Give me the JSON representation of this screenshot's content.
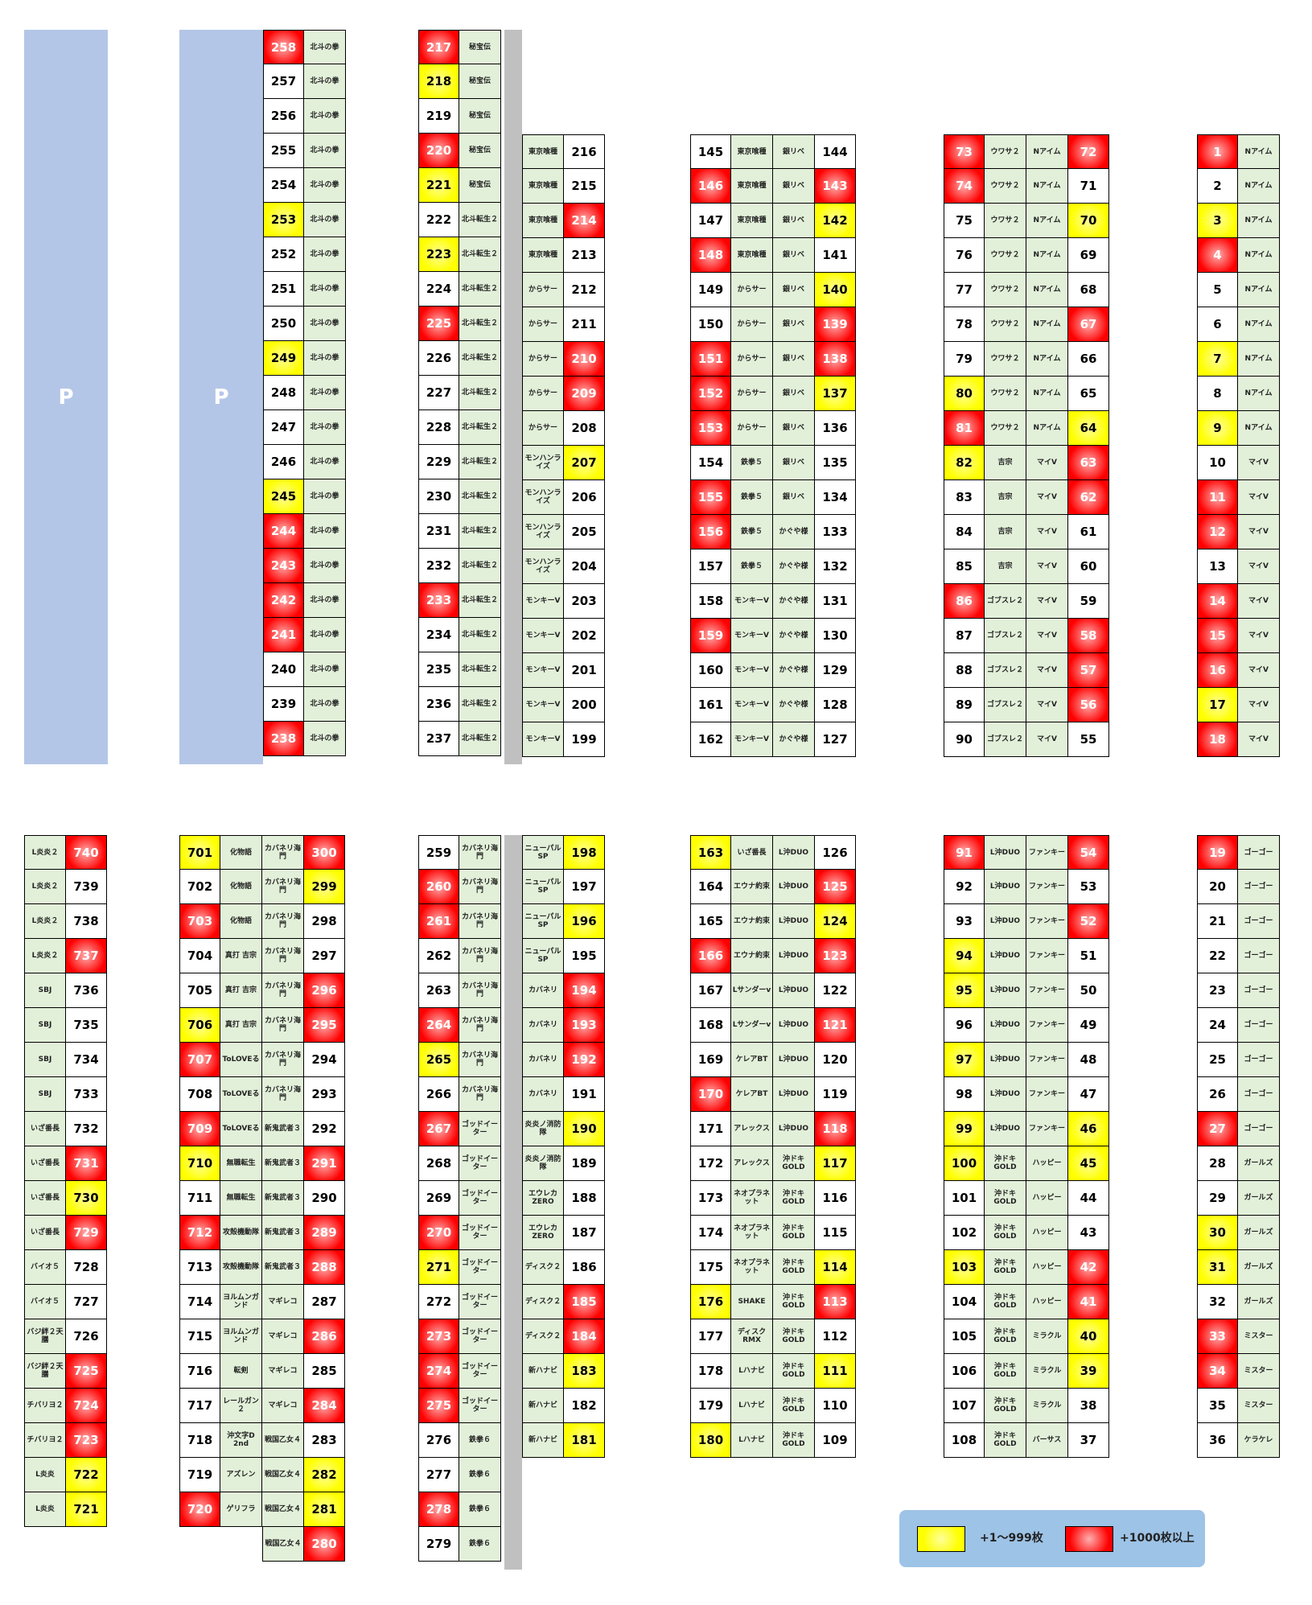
{
  "parking_label": "P",
  "legend": {
    "yellow_label": "+1～999枚",
    "red_label": "+1000枚以上",
    "yellow_color": "#ffff00",
    "red_color": "#ff0000"
  },
  "groups": [
    {
      "id": "g1",
      "cols": [
        "n",
        "m"
      ],
      "rows": [
        [
          "258r",
          "北斗の拳"
        ],
        [
          "257",
          "北斗の拳"
        ],
        [
          "256",
          "北斗の拳"
        ],
        [
          "255",
          "北斗の拳"
        ],
        [
          "254",
          "北斗の拳"
        ],
        [
          "253y",
          "北斗の拳"
        ],
        [
          "252",
          "北斗の拳"
        ],
        [
          "251",
          "北斗の拳"
        ],
        [
          "250",
          "北斗の拳"
        ],
        [
          "249y",
          "北斗の拳"
        ],
        [
          "248",
          "北斗の拳"
        ],
        [
          "247",
          "北斗の拳"
        ],
        [
          "246",
          "北斗の拳"
        ],
        [
          "245y",
          "北斗の拳"
        ],
        [
          "244r",
          "北斗の拳"
        ],
        [
          "243r",
          "北斗の拳"
        ],
        [
          "242r",
          "北斗の拳"
        ],
        [
          "241r",
          "北斗の拳"
        ],
        [
          "240",
          "北斗の拳"
        ],
        [
          "239",
          "北斗の拳"
        ],
        [
          "238r",
          "北斗の拳"
        ]
      ]
    },
    {
      "id": "g2",
      "cols": [
        "n",
        "m"
      ],
      "rows": [
        [
          "217r",
          "秘宝伝"
        ],
        [
          "218y",
          "秘宝伝"
        ],
        [
          "219",
          "秘宝伝"
        ],
        [
          "220r",
          "秘宝伝"
        ],
        [
          "221y",
          "秘宝伝"
        ],
        [
          "222",
          "北斗転生２"
        ],
        [
          "223y",
          "北斗転生２"
        ],
        [
          "224",
          "北斗転生２"
        ],
        [
          "225r",
          "北斗転生２"
        ],
        [
          "226",
          "北斗転生２"
        ],
        [
          "227",
          "北斗転生２"
        ],
        [
          "228",
          "北斗転生２"
        ],
        [
          "229",
          "北斗転生２"
        ],
        [
          "230",
          "北斗転生２"
        ],
        [
          "231",
          "北斗転生２"
        ],
        [
          "232",
          "北斗転生２"
        ],
        [
          "233r",
          "北斗転生２"
        ],
        [
          "234",
          "北斗転生２"
        ],
        [
          "235",
          "北斗転生２"
        ],
        [
          "236",
          "北斗転生２"
        ],
        [
          "237",
          "北斗転生２"
        ]
      ]
    },
    {
      "id": "g3",
      "cols": [
        "m",
        "n"
      ],
      "rows": [
        [
          "東京喰種",
          "216"
        ],
        [
          "東京喰種",
          "215"
        ],
        [
          "東京喰種",
          "214r"
        ],
        [
          "東京喰種",
          "213"
        ],
        [
          "からサー",
          "212"
        ],
        [
          "からサー",
          "211"
        ],
        [
          "からサー",
          "210r"
        ],
        [
          "からサー",
          "209r"
        ],
        [
          "からサー",
          "208"
        ],
        [
          "モンハンライズ",
          "207y"
        ],
        [
          "モンハンライズ",
          "206"
        ],
        [
          "モンハンライズ",
          "205"
        ],
        [
          "モンハンライズ",
          "204"
        ],
        [
          "モンキーV",
          "203"
        ],
        [
          "モンキーV",
          "202"
        ],
        [
          "モンキーV",
          "201"
        ],
        [
          "モンキーV",
          "200"
        ],
        [
          "モンキーV",
          "199"
        ]
      ]
    },
    {
      "id": "g4",
      "cols": [
        "n",
        "m",
        "m",
        "n"
      ],
      "rows": [
        [
          "145",
          "東京喰種",
          "銀リベ",
          "144"
        ],
        [
          "146r",
          "東京喰種",
          "銀リベ",
          "143r"
        ],
        [
          "147",
          "東京喰種",
          "銀リベ",
          "142y"
        ],
        [
          "148r",
          "東京喰種",
          "銀リベ",
          "141"
        ],
        [
          "149",
          "からサー",
          "銀リベ",
          "140y"
        ],
        [
          "150",
          "からサー",
          "銀リベ",
          "139r"
        ],
        [
          "151r",
          "からサー",
          "銀リベ",
          "138r"
        ],
        [
          "152r",
          "からサー",
          "銀リベ",
          "137y"
        ],
        [
          "153r",
          "からサー",
          "銀リベ",
          "136"
        ],
        [
          "154",
          "鉄拳５",
          "銀リベ",
          "135"
        ],
        [
          "155r",
          "鉄拳５",
          "銀リベ",
          "134"
        ],
        [
          "156r",
          "鉄拳５",
          "かぐや様",
          "133"
        ],
        [
          "157",
          "鉄拳５",
          "かぐや様",
          "132"
        ],
        [
          "158",
          "モンキーV",
          "かぐや様",
          "131"
        ],
        [
          "159r",
          "モンキーV",
          "かぐや様",
          "130"
        ],
        [
          "160",
          "モンキーV",
          "かぐや様",
          "129"
        ],
        [
          "161",
          "モンキーV",
          "かぐや様",
          "128"
        ],
        [
          "162",
          "モンキーV",
          "かぐや様",
          "127"
        ]
      ]
    },
    {
      "id": "g5",
      "cols": [
        "n",
        "m",
        "m",
        "n"
      ],
      "rows": [
        [
          "73r",
          "ウワサ２",
          "Nアイム",
          "72r"
        ],
        [
          "74r",
          "ウワサ２",
          "Nアイム",
          "71"
        ],
        [
          "75",
          "ウワサ２",
          "Nアイム",
          "70y"
        ],
        [
          "76",
          "ウワサ２",
          "Nアイム",
          "69"
        ],
        [
          "77",
          "ウワサ２",
          "Nアイム",
          "68"
        ],
        [
          "78",
          "ウワサ２",
          "Nアイム",
          "67r"
        ],
        [
          "79",
          "ウワサ２",
          "Nアイム",
          "66"
        ],
        [
          "80y",
          "ウワサ２",
          "Nアイム",
          "65"
        ],
        [
          "81r",
          "ウワサ２",
          "Nアイム",
          "64y"
        ],
        [
          "82y",
          "吉宗",
          "マイV",
          "63r"
        ],
        [
          "83",
          "吉宗",
          "マイV",
          "62r"
        ],
        [
          "84",
          "吉宗",
          "マイV",
          "61"
        ],
        [
          "85",
          "吉宗",
          "マイV",
          "60"
        ],
        [
          "86r",
          "ゴブスレ２",
          "マイV",
          "59"
        ],
        [
          "87",
          "ゴブスレ２",
          "マイV",
          "58r"
        ],
        [
          "88",
          "ゴブスレ２",
          "マイV",
          "57r"
        ],
        [
          "89",
          "ゴブスレ２",
          "マイV",
          "56r"
        ],
        [
          "90",
          "ゴブスレ２",
          "マイV",
          "55"
        ]
      ]
    },
    {
      "id": "g6",
      "cols": [
        "n",
        "m"
      ],
      "rows": [
        [
          "1r",
          "Nアイム"
        ],
        [
          "2",
          "Nアイム"
        ],
        [
          "3y",
          "Nアイム"
        ],
        [
          "4r",
          "Nアイム"
        ],
        [
          "5",
          "Nアイム"
        ],
        [
          "6",
          "Nアイム"
        ],
        [
          "7y",
          "Nアイム"
        ],
        [
          "8",
          "Nアイム"
        ],
        [
          "9y",
          "Nアイム"
        ],
        [
          "10",
          "マイV"
        ],
        [
          "11r",
          "マイV"
        ],
        [
          "12r",
          "マイV"
        ],
        [
          "13",
          "マイV"
        ],
        [
          "14r",
          "マイV"
        ],
        [
          "15r",
          "マイV"
        ],
        [
          "16r",
          "マイV"
        ],
        [
          "17y",
          "マイV"
        ],
        [
          "18r",
          "マイV"
        ]
      ]
    },
    {
      "id": "g7",
      "cols": [
        "m",
        "n"
      ],
      "rows": [
        [
          "L炎炎２",
          "740r"
        ],
        [
          "L炎炎２",
          "739"
        ],
        [
          "L炎炎２",
          "738"
        ],
        [
          "L炎炎２",
          "737r"
        ],
        [
          "SBJ",
          "736"
        ],
        [
          "SBJ",
          "735"
        ],
        [
          "SBJ",
          "734"
        ],
        [
          "SBJ",
          "733"
        ],
        [
          "いざ番長",
          "732"
        ],
        [
          "いざ番長",
          "731r"
        ],
        [
          "いざ番長",
          "730y"
        ],
        [
          "いざ番長",
          "729r"
        ],
        [
          "バイオ５",
          "728"
        ],
        [
          "バイオ５",
          "727"
        ],
        [
          "バジ絆２天膳",
          "726"
        ],
        [
          "バジ絆２天膳",
          "725r"
        ],
        [
          "チバリヨ２",
          "724r"
        ],
        [
          "チバリヨ２",
          "723r"
        ],
        [
          "L炎炎",
          "722y"
        ],
        [
          "L炎炎",
          "721y"
        ]
      ]
    },
    {
      "id": "g8",
      "cols": [
        "n",
        "m",
        "m",
        "n"
      ],
      "rows": [
        [
          "701y",
          "化物語",
          "カバネリ海門",
          "300r"
        ],
        [
          "702",
          "化物語",
          "カバネリ海門",
          "299y"
        ],
        [
          "703r",
          "化物語",
          "カバネリ海門",
          "298"
        ],
        [
          "704",
          "真打 吉宗",
          "カバネリ海門",
          "297"
        ],
        [
          "705",
          "真打 吉宗",
          "カバネリ海門",
          "296r"
        ],
        [
          "706y",
          "真打 吉宗",
          "カバネリ海門",
          "295r"
        ],
        [
          "707r",
          "ToLOVEる",
          "カバネリ海門",
          "294"
        ],
        [
          "708",
          "ToLOVEる",
          "カバネリ海門",
          "293"
        ],
        [
          "709r",
          "ToLOVEる",
          "新鬼武者３",
          "292"
        ],
        [
          "710y",
          "無職転生",
          "新鬼武者３",
          "291r"
        ],
        [
          "711",
          "無職転生",
          "新鬼武者３",
          "290"
        ],
        [
          "712r",
          "攻殻機動隊",
          "新鬼武者３",
          "289r"
        ],
        [
          "713",
          "攻殻機動隊",
          "新鬼武者３",
          "288r"
        ],
        [
          "714",
          "ヨルムンガンド",
          "マギレコ",
          "287"
        ],
        [
          "715",
          "ヨルムンガンド",
          "マギレコ",
          "286r"
        ],
        [
          "716",
          "転剣",
          "マギレコ",
          "285"
        ],
        [
          "717",
          "レールガン２",
          "マギレコ",
          "284r"
        ],
        [
          "718",
          "沖文字D 2nd",
          "戦国乙女４",
          "283"
        ],
        [
          "719",
          "アズレン",
          "戦国乙女４",
          "282y"
        ],
        [
          "720r",
          "ゲリフラ",
          "戦国乙女４",
          "281y"
        ],
        [
          "",
          "",
          "戦国乙女４",
          "280r"
        ]
      ]
    },
    {
      "id": "g9",
      "cols": [
        "n",
        "m"
      ],
      "rows": [
        [
          "259",
          "カバネリ海門"
        ],
        [
          "260r",
          "カバネリ海門"
        ],
        [
          "261r",
          "カバネリ海門"
        ],
        [
          "262",
          "カバネリ海門"
        ],
        [
          "263",
          "カバネリ海門"
        ],
        [
          "264r",
          "カバネリ海門"
        ],
        [
          "265y",
          "カバネリ海門"
        ],
        [
          "266",
          "カバネリ海門"
        ],
        [
          "267r",
          "ゴッドイーター"
        ],
        [
          "268",
          "ゴッドイーター"
        ],
        [
          "269",
          "ゴッドイーター"
        ],
        [
          "270r",
          "ゴッドイーター"
        ],
        [
          "271y",
          "ゴッドイーター"
        ],
        [
          "272",
          "ゴッドイーター"
        ],
        [
          "273r",
          "ゴッドイーター"
        ],
        [
          "274r",
          "ゴッドイーター"
        ],
        [
          "275r",
          "ゴッドイーター"
        ],
        [
          "276",
          "鉄拳６"
        ],
        [
          "277",
          "鉄拳６"
        ],
        [
          "278r",
          "鉄拳６"
        ],
        [
          "279",
          "鉄拳６"
        ]
      ]
    },
    {
      "id": "g10",
      "cols": [
        "m",
        "n"
      ],
      "rows": [
        [
          "ニューパルSP",
          "198y"
        ],
        [
          "ニューパルSP",
          "197"
        ],
        [
          "ニューパルSP",
          "196y"
        ],
        [
          "ニューパルSP",
          "195"
        ],
        [
          "カバネリ",
          "194r"
        ],
        [
          "カバネリ",
          "193r"
        ],
        [
          "カバネリ",
          "192r"
        ],
        [
          "カバネリ",
          "191"
        ],
        [
          "炎炎ノ消防隊",
          "190y"
        ],
        [
          "炎炎ノ消防隊",
          "189"
        ],
        [
          "エウレカZERO",
          "188"
        ],
        [
          "エウレカZERO",
          "187"
        ],
        [
          "ディスク２",
          "186"
        ],
        [
          "ディスク２",
          "185r"
        ],
        [
          "ディスク２",
          "184r"
        ],
        [
          "新ハナビ",
          "183y"
        ],
        [
          "新ハナビ",
          "182"
        ],
        [
          "新ハナビ",
          "181y"
        ]
      ]
    },
    {
      "id": "g11",
      "cols": [
        "n",
        "m",
        "m",
        "n"
      ],
      "rows": [
        [
          "163y",
          "いざ番長",
          "L沖DUO",
          "126"
        ],
        [
          "164",
          "エウナ約束",
          "L沖DUO",
          "125r"
        ],
        [
          "165",
          "エウナ約束",
          "L沖DUO",
          "124y"
        ],
        [
          "166r",
          "エウナ約束",
          "L沖DUO",
          "123r"
        ],
        [
          "167",
          "Lサンダーv",
          "L沖DUO",
          "122"
        ],
        [
          "168",
          "Lサンダーv",
          "L沖DUO",
          "121r"
        ],
        [
          "169",
          "ケレアBT",
          "L沖DUO",
          "120"
        ],
        [
          "170r",
          "ケレアBT",
          "L沖DUO",
          "119"
        ],
        [
          "171",
          "アレックス",
          "L沖DUO",
          "118r"
        ],
        [
          "172",
          "アレックス",
          "沖ドキGOLD",
          "117y"
        ],
        [
          "173",
          "ネオプラネット",
          "沖ドキGOLD",
          "116"
        ],
        [
          "174",
          "ネオプラネット",
          "沖ドキGOLD",
          "115"
        ],
        [
          "175",
          "ネオプラネット",
          "沖ドキGOLD",
          "114y"
        ],
        [
          "176y",
          "SHAKE",
          "沖ドキGOLD",
          "113r"
        ],
        [
          "177",
          "ディスクRMX",
          "沖ドキGOLD",
          "112"
        ],
        [
          "178",
          "Lハナビ",
          "沖ドキGOLD",
          "111y"
        ],
        [
          "179",
          "Lハナビ",
          "沖ドキGOLD",
          "110"
        ],
        [
          "180y",
          "Lハナビ",
          "沖ドキGOLD",
          "109"
        ]
      ]
    },
    {
      "id": "g12",
      "cols": [
        "n",
        "m",
        "m",
        "n"
      ],
      "rows": [
        [
          "91r",
          "L沖DUO",
          "ファンキー",
          "54r"
        ],
        [
          "92",
          "L沖DUO",
          "ファンキー",
          "53"
        ],
        [
          "93",
          "L沖DUO",
          "ファンキー",
          "52r"
        ],
        [
          "94y",
          "L沖DUO",
          "ファンキー",
          "51"
        ],
        [
          "95y",
          "L沖DUO",
          "ファンキー",
          "50"
        ],
        [
          "96",
          "L沖DUO",
          "ファンキー",
          "49"
        ],
        [
          "97y",
          "L沖DUO",
          "ファンキー",
          "48"
        ],
        [
          "98",
          "L沖DUO",
          "ファンキー",
          "47"
        ],
        [
          "99y",
          "L沖DUO",
          "ファンキー",
          "46y"
        ],
        [
          "100y",
          "沖ドキGOLD",
          "ハッピー",
          "45y"
        ],
        [
          "101",
          "沖ドキGOLD",
          "ハッピー",
          "44"
        ],
        [
          "102",
          "沖ドキGOLD",
          "ハッピー",
          "43"
        ],
        [
          "103y",
          "沖ドキGOLD",
          "ハッピー",
          "42r"
        ],
        [
          "104",
          "沖ドキGOLD",
          "ハッピー",
          "41r"
        ],
        [
          "105",
          "沖ドキGOLD",
          "ミラクル",
          "40y"
        ],
        [
          "106",
          "沖ドキGOLD",
          "ミラクル",
          "39y"
        ],
        [
          "107",
          "沖ドキGOLD",
          "ミラクル",
          "38"
        ],
        [
          "108",
          "沖ドキGOLD",
          "バーサス",
          "37"
        ]
      ]
    },
    {
      "id": "g13",
      "cols": [
        "n",
        "m"
      ],
      "rows": [
        [
          "19r",
          "ゴーゴー"
        ],
        [
          "20",
          "ゴーゴー"
        ],
        [
          "21",
          "ゴーゴー"
        ],
        [
          "22",
          "ゴーゴー"
        ],
        [
          "23",
          "ゴーゴー"
        ],
        [
          "24",
          "ゴーゴー"
        ],
        [
          "25",
          "ゴーゴー"
        ],
        [
          "26",
          "ゴーゴー"
        ],
        [
          "27r",
          "ゴーゴー"
        ],
        [
          "28",
          "ガールズ"
        ],
        [
          "29",
          "ガールズ"
        ],
        [
          "30y",
          "ガールズ"
        ],
        [
          "31y",
          "ガールズ"
        ],
        [
          "32",
          "ガールズ"
        ],
        [
          "33r",
          "ミスター"
        ],
        [
          "34r",
          "ミスター"
        ],
        [
          "35",
          "ミスター"
        ],
        [
          "36",
          "ケラケレ"
        ]
      ]
    }
  ]
}
